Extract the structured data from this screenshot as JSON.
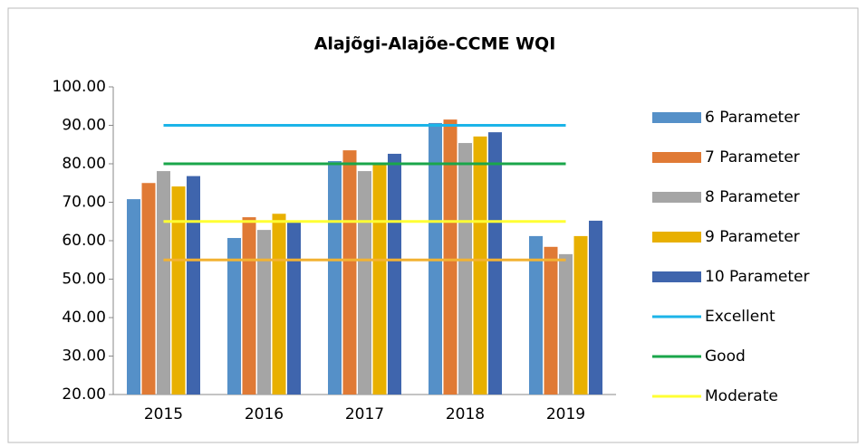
{
  "chart_data": {
    "type": "bar",
    "title": "Alajõgi-Alajõe-CCME WQI",
    "categories": [
      "2015",
      "2016",
      "2017",
      "2018",
      "2019"
    ],
    "series": [
      {
        "name": "6 Parameter",
        "color": "#5590c8",
        "values": [
          70.8,
          60.7,
          80.7,
          90.6,
          61.2
        ]
      },
      {
        "name": "7 Parameter",
        "color": "#e07a35",
        "values": [
          75.0,
          66.1,
          83.5,
          91.5,
          58.4
        ]
      },
      {
        "name": "8 Parameter",
        "color": "#a5a5a5",
        "values": [
          78.1,
          62.8,
          78.1,
          85.4,
          56.5
        ]
      },
      {
        "name": "9 Parameter",
        "color": "#e8b000",
        "values": [
          74.1,
          67.0,
          80.2,
          87.1,
          61.2
        ]
      },
      {
        "name": "10 Parameter",
        "color": "#3f65ad",
        "values": [
          76.8,
          64.7,
          82.6,
          88.2,
          65.2
        ]
      }
    ],
    "reference_lines": [
      {
        "name": "Excellent",
        "color": "#1cb4e8",
        "value": 90
      },
      {
        "name": "Good",
        "color": "#1aa64a",
        "value": 80
      },
      {
        "name": "Moderate",
        "color": "#ffff33",
        "value": 65
      },
      {
        "color": "#f2b233",
        "value": 55
      }
    ],
    "ylim": [
      20,
      100
    ],
    "yticks": [
      {
        "value": 20,
        "label": "20.00"
      },
      {
        "value": 30,
        "label": "30.00"
      },
      {
        "value": 40,
        "label": "40.00"
      },
      {
        "value": 50,
        "label": "50.00"
      },
      {
        "value": 60,
        "label": "60.00"
      },
      {
        "value": 70,
        "label": "70.00"
      },
      {
        "value": 80,
        "label": "80.00"
      },
      {
        "value": 90,
        "label": "90.00"
      },
      {
        "value": 100,
        "label": "100.00"
      }
    ],
    "grid": false
  }
}
